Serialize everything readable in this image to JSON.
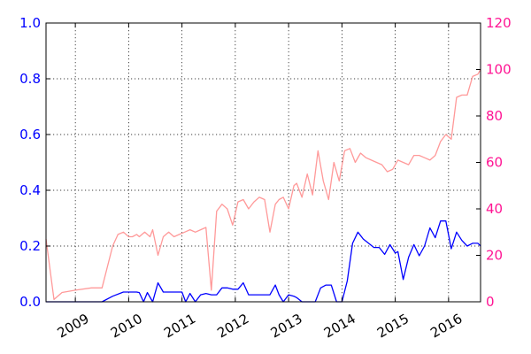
{
  "chart_data": {
    "type": "line",
    "title": "",
    "grid": true,
    "xlim": [
      2008.45,
      2016.6
    ],
    "x_tick_values": [
      2009,
      2010,
      2011,
      2012,
      2013,
      2014,
      2015,
      2016
    ],
    "x_tick_labels": [
      "2009",
      "2010",
      "2011",
      "2012",
      "2013",
      "2014",
      "2015",
      "2016"
    ],
    "y_left": {
      "lim": [
        0,
        1.0
      ],
      "ticks": [
        0.0,
        0.2,
        0.4,
        0.6,
        0.8,
        1.0
      ],
      "tick_labels": [
        "0.0",
        "0.2",
        "0.4",
        "0.6",
        "0.8",
        "1.0"
      ],
      "color": "#0000ff"
    },
    "y_right": {
      "lim": [
        0,
        120
      ],
      "ticks": [
        0,
        20,
        40,
        60,
        80,
        100,
        120
      ],
      "tick_labels": [
        "0",
        "20",
        "40",
        "60",
        "80",
        "100",
        "120"
      ],
      "color": "#ff1493"
    },
    "series": [
      {
        "axis": "left",
        "color": "#0000ff",
        "x": [
          2008.45,
          2008.6,
          2009.0,
          2009.3,
          2009.5,
          2009.7,
          2009.9,
          2010.0,
          2010.07,
          2010.15,
          2010.2,
          2010.28,
          2010.35,
          2010.45,
          2010.55,
          2010.65,
          2010.75,
          2010.83,
          2010.9,
          2011.0,
          2011.07,
          2011.15,
          2011.25,
          2011.35,
          2011.45,
          2011.55,
          2011.65,
          2011.75,
          2011.85,
          2011.95,
          2012.05,
          2012.15,
          2012.25,
          2012.35,
          2012.45,
          2012.55,
          2012.65,
          2012.75,
          2012.82,
          2012.9,
          2013.0,
          2013.1,
          2013.15,
          2013.25,
          2013.4,
          2013.5,
          2013.6,
          2013.7,
          2013.8,
          2013.9,
          2014.0,
          2014.1,
          2014.2,
          2014.3,
          2014.4,
          2014.5,
          2014.6,
          2014.7,
          2014.8,
          2014.9,
          2015.0,
          2015.05,
          2015.15,
          2015.25,
          2015.35,
          2015.45,
          2015.55,
          2015.65,
          2015.75,
          2015.85,
          2015.95,
          2016.05,
          2016.15,
          2016.25,
          2016.35,
          2016.45,
          2016.55,
          2016.6
        ],
        "values": [
          0.0,
          0.0,
          0.0,
          0.0,
          0.0,
          0.02,
          0.035,
          0.035,
          0.035,
          0.035,
          0.033,
          0.0,
          0.033,
          0.0,
          0.068,
          0.035,
          0.035,
          0.035,
          0.035,
          0.035,
          0.0,
          0.03,
          0.0,
          0.025,
          0.03,
          0.025,
          0.025,
          0.05,
          0.05,
          0.045,
          0.045,
          0.068,
          0.025,
          0.025,
          0.025,
          0.025,
          0.025,
          0.06,
          0.025,
          0.0,
          0.025,
          0.02,
          0.015,
          0.0,
          0.0,
          0.0,
          0.05,
          0.06,
          0.06,
          0.0,
          0.0,
          0.075,
          0.21,
          0.25,
          0.225,
          0.21,
          0.195,
          0.195,
          0.17,
          0.205,
          0.175,
          0.18,
          0.08,
          0.16,
          0.205,
          0.165,
          0.2,
          0.265,
          0.23,
          0.29,
          0.29,
          0.19,
          0.25,
          0.22,
          0.2,
          0.21,
          0.21,
          0.2
        ]
      },
      {
        "axis": "right",
        "color": "#ff9999",
        "x": [
          2008.45,
          2008.6,
          2008.75,
          2009.0,
          2009.3,
          2009.5,
          2009.6,
          2009.7,
          2009.8,
          2009.9,
          2010.0,
          2010.07,
          2010.15,
          2010.2,
          2010.25,
          2010.3,
          2010.35,
          2010.4,
          2010.45,
          2010.55,
          2010.65,
          2010.75,
          2010.85,
          2010.95,
          2011.05,
          2011.15,
          2011.25,
          2011.35,
          2011.45,
          2011.55,
          2011.65,
          2011.75,
          2011.85,
          2011.95,
          2012.05,
          2012.15,
          2012.25,
          2012.35,
          2012.45,
          2012.55,
          2012.65,
          2012.75,
          2012.82,
          2012.9,
          2013.0,
          2013.1,
          2013.15,
          2013.25,
          2013.35,
          2013.45,
          2013.55,
          2013.65,
          2013.75,
          2013.85,
          2013.95,
          2014.05,
          2014.15,
          2014.25,
          2014.35,
          2014.45,
          2014.55,
          2014.65,
          2014.75,
          2014.85,
          2014.95,
          2015.05,
          2015.15,
          2015.25,
          2015.35,
          2015.45,
          2015.55,
          2015.65,
          2015.75,
          2015.85,
          2015.95,
          2016.05,
          2016.15,
          2016.25,
          2016.35,
          2016.45,
          2016.55,
          2016.6
        ],
        "values": [
          27,
          1,
          4,
          5,
          6,
          6,
          15,
          24,
          29,
          30,
          28,
          28,
          29,
          28,
          29,
          30,
          29,
          28,
          31,
          20,
          28,
          30,
          28,
          29,
          30,
          31,
          30,
          31,
          32,
          5,
          39,
          42,
          40,
          33,
          43,
          44,
          40,
          43,
          45,
          44,
          30,
          42,
          44,
          45,
          40,
          50,
          51,
          45,
          55,
          46,
          65,
          52,
          44,
          60,
          52,
          65,
          66,
          60,
          64,
          62,
          61,
          60,
          59,
          56,
          57,
          61,
          60,
          59,
          63,
          63,
          62,
          61,
          63,
          69,
          72,
          70,
          88,
          89,
          89,
          97,
          98,
          100
        ]
      }
    ]
  }
}
